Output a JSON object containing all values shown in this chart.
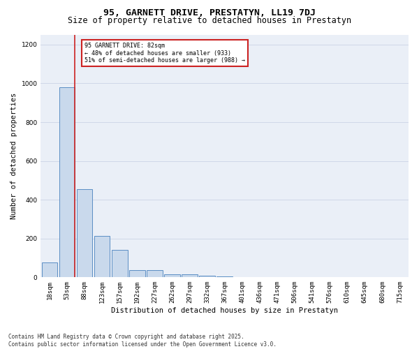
{
  "title": "95, GARNETT DRIVE, PRESTATYN, LL19 7DJ",
  "subtitle": "Size of property relative to detached houses in Prestatyn",
  "xlabel": "Distribution of detached houses by size in Prestatyn",
  "ylabel": "Number of detached properties",
  "categories": [
    "18sqm",
    "53sqm",
    "88sqm",
    "123sqm",
    "157sqm",
    "192sqm",
    "227sqm",
    "262sqm",
    "297sqm",
    "332sqm",
    "367sqm",
    "401sqm",
    "436sqm",
    "471sqm",
    "506sqm",
    "541sqm",
    "576sqm",
    "610sqm",
    "645sqm",
    "680sqm",
    "715sqm"
  ],
  "values": [
    75,
    980,
    455,
    215,
    140,
    38,
    38,
    17,
    14,
    9,
    5,
    0,
    0,
    0,
    0,
    0,
    0,
    0,
    0,
    0,
    0
  ],
  "bar_color": "#c9d9ec",
  "bar_edge_color": "#5b8ec4",
  "highlight_line_color": "#cc2222",
  "annotation_text": "95 GARNETT DRIVE: 82sqm\n← 48% of detached houses are smaller (933)\n51% of semi-detached houses are larger (988) →",
  "annotation_box_color": "#cc2222",
  "ylim": [
    0,
    1250
  ],
  "yticks": [
    0,
    200,
    400,
    600,
    800,
    1000,
    1200
  ],
  "grid_color": "#d0d8e8",
  "background_color": "#eaeff7",
  "footer": "Contains HM Land Registry data © Crown copyright and database right 2025.\nContains public sector information licensed under the Open Government Licence v3.0.",
  "title_fontsize": 9.5,
  "subtitle_fontsize": 8.5,
  "label_fontsize": 7.5,
  "tick_fontsize": 6.5,
  "footer_fontsize": 5.5,
  "annotation_fontsize": 6.0
}
